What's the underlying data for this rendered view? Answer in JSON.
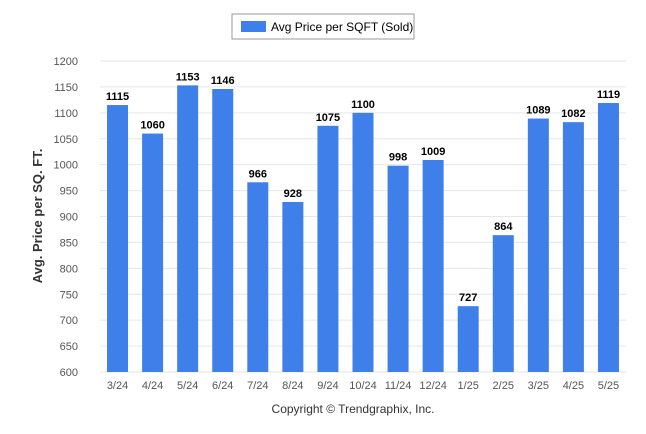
{
  "legend": {
    "label": "Avg Price per SQFT (Sold)",
    "position": "top-center"
  },
  "copyright": "Copyright © Trendgraphix, Inc.",
  "colors": {
    "bar": "#3f7fea",
    "grid": "#e6e6e6",
    "axis_text": "#555555",
    "label_text": "#000000",
    "title_text": "#333333"
  },
  "chart_data": {
    "type": "bar",
    "ylabel": "Avg. Price per SQ. FT.",
    "xlabel": "",
    "ylim": [
      600,
      1200
    ],
    "yticks": [
      600,
      650,
      700,
      750,
      800,
      850,
      900,
      950,
      1000,
      1050,
      1100,
      1150,
      1200
    ],
    "grid": true,
    "categories": [
      "3/24",
      "4/24",
      "5/24",
      "6/24",
      "7/24",
      "8/24",
      "9/24",
      "10/24",
      "11/24",
      "12/24",
      "1/25",
      "2/25",
      "3/25",
      "4/25",
      "5/25"
    ],
    "series": [
      {
        "name": "Avg Price per SQFT (Sold)",
        "values": [
          1115,
          1060,
          1153,
          1146,
          966,
          928,
          1075,
          1100,
          998,
          1009,
          727,
          864,
          1089,
          1082,
          1119
        ]
      }
    ]
  }
}
